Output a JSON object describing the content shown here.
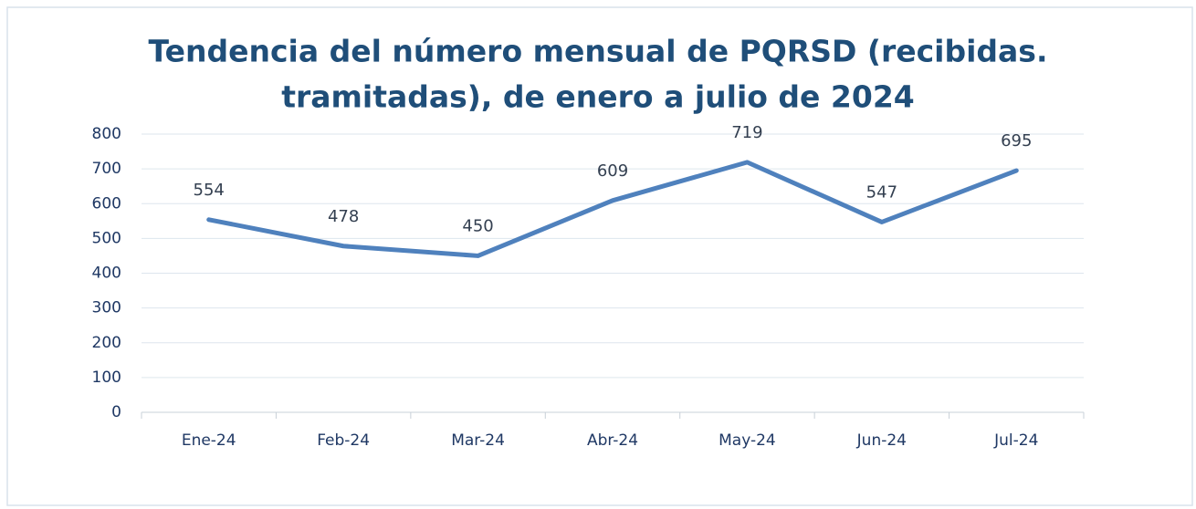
{
  "chart_data": {
    "type": "line",
    "title": [
      "Tendencia del número mensual de PQRSD (recibidas.",
      "tramitadas), de enero a julio de 2024"
    ],
    "categories": [
      "Ene-24",
      "Feb-24",
      "Mar-24",
      "Abr-24",
      "May-24",
      "Jun-24",
      "Jul-24"
    ],
    "series": [
      {
        "name": "PQRSD",
        "color": "#4f81bd",
        "values": [
          554,
          478,
          450,
          609,
          719,
          547,
          695
        ]
      }
    ],
    "ylim": [
      0,
      800
    ],
    "yticks": [
      0,
      100,
      200,
      300,
      400,
      500,
      600,
      700,
      800
    ],
    "grid": true
  }
}
